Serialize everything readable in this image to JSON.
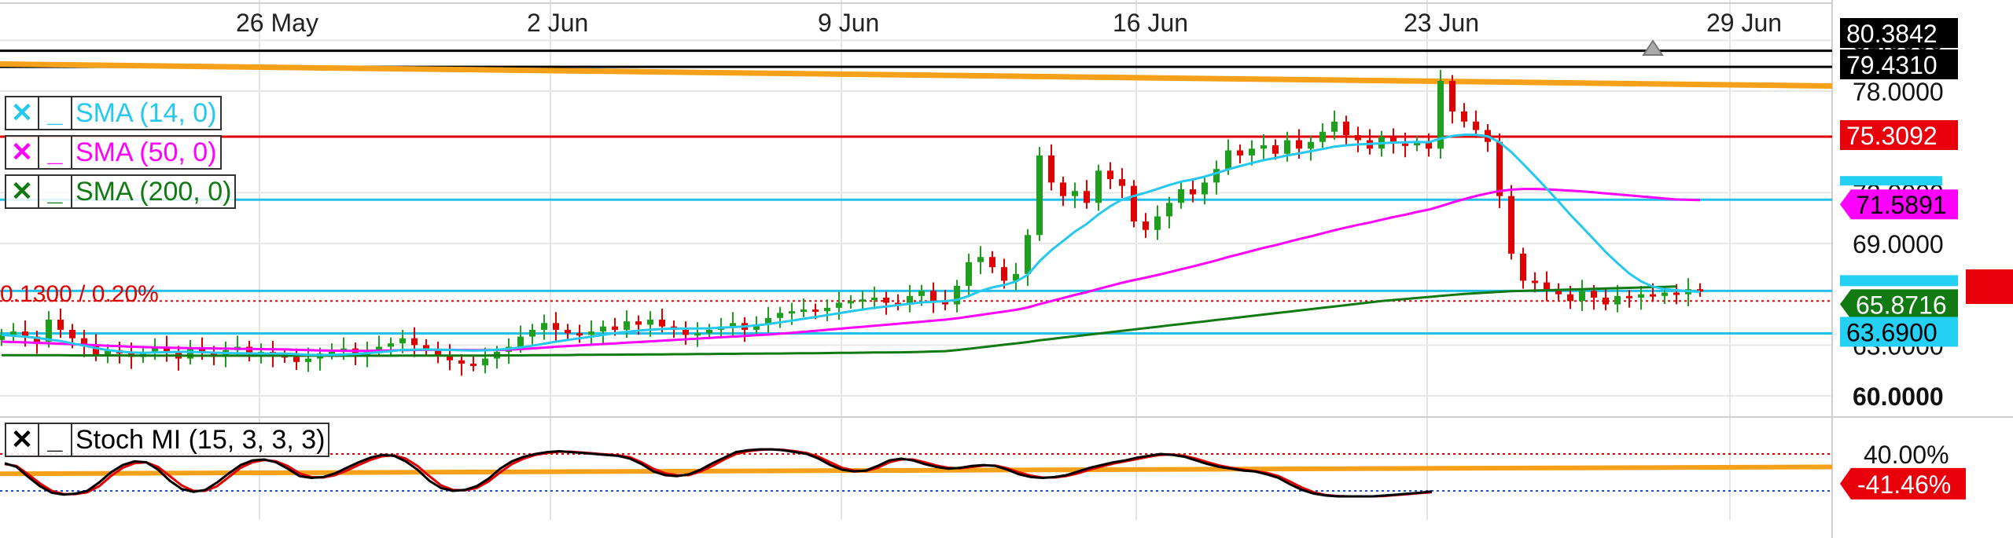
{
  "chart_data": {
    "type": "candlestick",
    "x_labels": [
      "26 May",
      "2 Jun",
      "9 Jun",
      "16 Jun",
      "23 Jun",
      "29 Jun"
    ],
    "price_axis": {
      "ticks": [
        "78.0000",
        "69.0000",
        "60.0000"
      ],
      "partial_ticks": [
        "81.0000",
        "72.0000",
        "63.0000"
      ]
    },
    "price_tags": [
      {
        "label": "79.4310",
        "value": 79.431,
        "bg": "#000000",
        "fg": "#ffffff"
      },
      {
        "label": "80.3842",
        "value": 80.3842,
        "bg": "#000000",
        "fg": "#ffffff"
      },
      {
        "label": "75.3092",
        "value": 75.3092,
        "bg": "#e8000b",
        "fg": "#ffffff"
      },
      {
        "label": "71.5891",
        "value": 71.5891,
        "bg": "#ff00ff",
        "fg": "#000000"
      },
      {
        "label": "65.8716",
        "value": 65.8716,
        "bg": "#127a12",
        "fg": "#ffffff"
      },
      {
        "label": "63.6900",
        "value": 63.69,
        "bg": "#25d0f5",
        "fg": "#000000"
      }
    ],
    "change_text": "0.1300 / 0.20%",
    "horizontal_lines": [
      {
        "value": 80.3842,
        "color": "#000000"
      },
      {
        "value": 79.431,
        "color": "#000000"
      },
      {
        "value": 75.3092,
        "color": "#e00000"
      },
      {
        "value": 71.5891,
        "color": "#25c0ea"
      },
      {
        "value": 66.2,
        "color": "#25c0ea"
      },
      {
        "value": 63.69,
        "color": "#25c0ea"
      }
    ],
    "trendline_price": {
      "from": 79.6,
      "to": 78.3,
      "color": "#f7a11a"
    },
    "indicators": [
      {
        "name": "SMA (14, 0)",
        "color": "#25c8ee"
      },
      {
        "name": "SMA (50, 0)",
        "color": "#ff00ff"
      },
      {
        "name": "SMA (200, 0)",
        "color": "#127a12"
      }
    ],
    "close_prices": [
      63.6,
      63.8,
      63.5,
      63.2,
      64.5,
      63.9,
      63.4,
      63.0,
      62.4,
      62.7,
      62.5,
      62.3,
      62.6,
      62.9,
      62.6,
      62.2,
      62.8,
      62.6,
      62.4,
      62.7,
      62.9,
      62.5,
      62.6,
      62.4,
      62.3,
      62.0,
      62.2,
      62.5,
      62.6,
      62.8,
      62.4,
      62.7,
      62.9,
      63.1,
      63.4,
      63.0,
      62.7,
      62.4,
      62.1,
      61.9,
      61.8,
      62.2,
      62.6,
      62.9,
      63.5,
      63.9,
      64.3,
      63.9,
      63.7,
      63.6,
      63.8,
      64.1,
      63.9,
      64.4,
      64.2,
      64.5,
      64.1,
      63.9,
      63.6,
      63.7,
      63.9,
      64.1,
      64.3,
      63.9,
      64.2,
      64.6,
      64.9,
      65.0,
      65.1,
      65.0,
      65.2,
      65.5,
      65.6,
      65.7,
      65.8,
      65.5,
      65.4,
      65.9,
      66.2,
      65.6,
      65.4,
      66.5,
      67.9,
      68.2,
      67.6,
      66.8,
      67.2,
      69.5,
      74.2,
      72.6,
      71.8,
      72.1,
      71.4,
      73.3,
      72.8,
      72.4,
      70.3,
      69.8,
      70.6,
      71.4,
      72.2,
      71.9,
      72.6,
      73.4,
      74.5,
      74.2,
      74.6,
      74.8,
      74.3,
      75.1,
      74.6,
      75.0,
      75.6,
      76.2,
      75.4,
      75.1,
      74.6,
      75.3,
      74.9,
      74.8,
      75.0,
      74.6,
      78.6,
      76.8,
      76.2,
      75.7,
      75.0,
      71.8,
      68.4,
      66.8,
      66.7,
      66.3,
      66.0,
      65.6,
      66.2,
      65.8,
      65.4,
      65.9,
      65.8,
      66.0,
      65.9,
      66.1,
      66.0,
      66.3,
      66.2
    ],
    "sma14": [
      63.6,
      63.55,
      63.5,
      63.42,
      63.33,
      63.24,
      63.1,
      62.96,
      62.82,
      62.7,
      62.62,
      62.56,
      62.54,
      62.56,
      62.58,
      62.6,
      62.6,
      62.58,
      62.55,
      62.53,
      62.52,
      62.51,
      62.5,
      62.5,
      62.5,
      62.46,
      62.42,
      62.41,
      62.42,
      62.44,
      62.47,
      62.52,
      62.58,
      62.64,
      62.72,
      62.73,
      62.74,
      62.73,
      62.71,
      62.69,
      62.67,
      62.69,
      62.73,
      62.78,
      62.86,
      62.96,
      63.08,
      63.2,
      63.3,
      63.4,
      63.5,
      63.6,
      63.7,
      63.78,
      63.85,
      63.91,
      63.95,
      63.97,
      63.98,
      63.98,
      63.99,
      64.02,
      64.06,
      64.1,
      64.16,
      64.24,
      64.34,
      64.44,
      64.55,
      64.66,
      64.77,
      64.88,
      64.99,
      65.1,
      65.2,
      65.28,
      65.36,
      65.44,
      65.52,
      65.56,
      65.59,
      65.67,
      65.9,
      66.2,
      66.4,
      66.55,
      66.75,
      67.15,
      67.95,
      68.6,
      69.15,
      69.7,
      70.15,
      70.72,
      71.2,
      71.6,
      71.8,
      72.0,
      72.22,
      72.45,
      72.65,
      72.78,
      72.95,
      73.15,
      73.38,
      73.57,
      73.75,
      73.92,
      74.05,
      74.2,
      74.32,
      74.45,
      74.58,
      74.72,
      74.8,
      74.85,
      74.88,
      74.92,
      74.96,
      74.98,
      75.0,
      74.98,
      75.2,
      75.35,
      75.42,
      75.42,
      75.33,
      74.98,
      74.4,
      73.7,
      72.98,
      72.24,
      71.48,
      70.7,
      69.98,
      69.24,
      68.5,
      67.84,
      67.23,
      66.76,
      66.45,
      66.3,
      66.24,
      66.18,
      66.15
    ],
    "sma50": [
      63.2,
      63.18,
      63.16,
      63.13,
      63.11,
      63.08,
      63.05,
      63.02,
      62.99,
      62.96,
      62.93,
      62.9,
      62.88,
      62.86,
      62.85,
      62.83,
      62.82,
      62.81,
      62.8,
      62.79,
      62.78,
      62.77,
      62.76,
      62.75,
      62.74,
      62.72,
      62.7,
      62.68,
      62.67,
      62.66,
      62.66,
      62.66,
      62.67,
      62.68,
      62.7,
      62.71,
      62.72,
      62.72,
      62.72,
      62.71,
      62.7,
      62.7,
      62.71,
      62.73,
      62.76,
      62.8,
      62.85,
      62.9,
      62.94,
      62.98,
      63.02,
      63.06,
      63.1,
      63.14,
      63.18,
      63.22,
      63.26,
      63.3,
      63.34,
      63.38,
      63.42,
      63.46,
      63.5,
      63.54,
      63.58,
      63.62,
      63.67,
      63.72,
      63.78,
      63.84,
      63.9,
      63.96,
      64.02,
      64.08,
      64.14,
      64.2,
      64.26,
      64.32,
      64.38,
      64.44,
      64.5,
      64.58,
      64.68,
      64.78,
      64.88,
      64.98,
      65.08,
      65.22,
      65.42,
      65.6,
      65.78,
      65.96,
      66.12,
      66.32,
      66.5,
      66.68,
      66.84,
      66.98,
      67.14,
      67.3,
      67.48,
      67.64,
      67.82,
      68.0,
      68.2,
      68.38,
      68.56,
      68.74,
      68.9,
      69.08,
      69.26,
      69.42,
      69.6,
      69.78,
      69.94,
      70.1,
      70.24,
      70.4,
      70.56,
      70.7,
      70.86,
      71.0,
      71.2,
      71.42,
      71.62,
      71.8,
      71.96,
      72.1,
      72.18,
      72.22,
      72.22,
      72.2,
      72.16,
      72.12,
      72.08,
      72.02,
      71.96,
      71.9,
      71.84,
      71.78,
      71.72,
      71.66,
      71.6,
      71.58,
      71.56
    ],
    "sma200": [
      62.4,
      62.4,
      62.4,
      62.4,
      62.4,
      62.4,
      62.39,
      62.39,
      62.39,
      62.39,
      62.39,
      62.38,
      62.38,
      62.38,
      62.38,
      62.38,
      62.37,
      62.37,
      62.37,
      62.37,
      62.37,
      62.37,
      62.37,
      62.37,
      62.37,
      62.37,
      62.37,
      62.37,
      62.37,
      62.37,
      62.37,
      62.37,
      62.37,
      62.37,
      62.38,
      62.38,
      62.38,
      62.38,
      62.38,
      62.38,
      62.38,
      62.38,
      62.39,
      62.39,
      62.39,
      62.4,
      62.4,
      62.41,
      62.41,
      62.42,
      62.42,
      62.43,
      62.43,
      62.44,
      62.44,
      62.45,
      62.45,
      62.46,
      62.46,
      62.47,
      62.47,
      62.48,
      62.48,
      62.49,
      62.49,
      62.5,
      62.5,
      62.51,
      62.52,
      62.52,
      62.53,
      62.54,
      62.54,
      62.55,
      62.56,
      62.56,
      62.57,
      62.58,
      62.6,
      62.62,
      62.64,
      62.7,
      62.78,
      62.86,
      62.94,
      63.02,
      63.1,
      63.18,
      63.28,
      63.36,
      63.44,
      63.52,
      63.6,
      63.68,
      63.76,
      63.84,
      63.92,
      64.0,
      64.08,
      64.16,
      64.24,
      64.32,
      64.4,
      64.48,
      64.56,
      64.64,
      64.72,
      64.8,
      64.88,
      64.96,
      65.04,
      65.12,
      65.2,
      65.28,
      65.36,
      65.44,
      65.52,
      65.6,
      65.66,
      65.72,
      65.78,
      65.84,
      65.9,
      65.96,
      66.02,
      66.06,
      66.1,
      66.14,
      66.18,
      66.2,
      66.22,
      66.24,
      66.26,
      66.28,
      66.3,
      66.32,
      66.34,
      66.36,
      66.38,
      66.4,
      66.42,
      66.44,
      66.46
    ],
    "stochastic": {
      "name": "Stoch MI (15, 3, 3, 3)",
      "y_ticks": [
        "40.00%"
      ],
      "tag": {
        "label": "-41.46%",
        "value": -41.46,
        "bg": "#e8000b",
        "fg": "#ffffff"
      },
      "upper_level": 40,
      "lower_level": -40,
      "k": [
        20,
        12,
        -10,
        -30,
        -44,
        -48,
        -46,
        -40,
        -22,
        0,
        16,
        24,
        22,
        6,
        -18,
        -36,
        -42,
        -38,
        -22,
        -2,
        16,
        26,
        28,
        22,
        8,
        -8,
        -12,
        -10,
        -2,
        10,
        22,
        32,
        38,
        36,
        24,
        6,
        -18,
        -34,
        -40,
        -38,
        -30,
        -14,
        8,
        24,
        34,
        40,
        44,
        46,
        44,
        42,
        40,
        38,
        36,
        30,
        18,
        2,
        -6,
        -8,
        -4,
        6,
        20,
        32,
        44,
        48,
        50,
        50,
        48,
        44,
        40,
        30,
        16,
        6,
        2,
        4,
        14,
        26,
        30,
        26,
        18,
        12,
        8,
        10,
        14,
        16,
        14,
        6,
        -4,
        -10,
        -12,
        -10,
        -6,
        2,
        10,
        16,
        22,
        26,
        32,
        36,
        40,
        38,
        34,
        26,
        18,
        12,
        8,
        4,
        2,
        -4,
        -12,
        -26,
        -38,
        -46,
        -50,
        -52,
        -52,
        -52,
        -52,
        -50,
        -48,
        -46,
        -44,
        -41
      ],
      "d": [
        18,
        14,
        -4,
        -24,
        -40,
        -47,
        -47,
        -43,
        -30,
        -8,
        10,
        20,
        22,
        12,
        -8,
        -28,
        -40,
        -40,
        -30,
        -10,
        10,
        22,
        27,
        24,
        14,
        -2,
        -10,
        -11,
        -6,
        4,
        16,
        27,
        35,
        37,
        30,
        14,
        -8,
        -28,
        -38,
        -39,
        -34,
        -20,
        0,
        18,
        30,
        38,
        42,
        45,
        45,
        43,
        41,
        39,
        37,
        33,
        22,
        8,
        -2,
        -6,
        -6,
        2,
        14,
        28,
        40,
        46,
        49,
        50,
        49,
        46,
        42,
        34,
        22,
        10,
        4,
        3,
        10,
        22,
        28,
        28,
        22,
        15,
        10,
        9,
        12,
        15,
        15,
        9,
        0,
        -7,
        -11,
        -11,
        -8,
        -2,
        6,
        13,
        19,
        24,
        29,
        34,
        38,
        39,
        36,
        30,
        22,
        15,
        10,
        6,
        3,
        -1,
        -8,
        -20,
        -33,
        -43,
        -49,
        -51,
        -52,
        -52,
        -52,
        -51,
        -49,
        -47,
        -45,
        -43
      ],
      "trendline": {
        "from": -3,
        "to": 12,
        "color": "#f7a11a"
      }
    }
  }
}
